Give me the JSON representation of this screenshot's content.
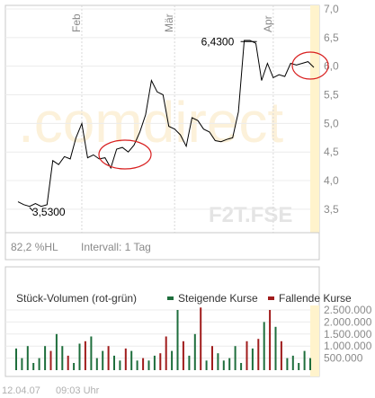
{
  "brand": {
    "watermark": ".comdirect",
    "ticker": "F2T.FSE"
  },
  "info": {
    "change": "82,2 %HL",
    "interval": "Intervall: 1 Tag"
  },
  "footer": {
    "date": "12.04.07",
    "time": "09:03 Uhr"
  },
  "colors": {
    "price": "#000000",
    "up": "#1e6e3c",
    "down": "#a01c1c",
    "highlight": "#d81e1e",
    "grid": "#dcdcdc"
  },
  "chart_data": [
    {
      "type": "line",
      "x_labels": [
        "Feb",
        "Mär",
        "Apr"
      ],
      "ylim": [
        3.2,
        7.0
      ],
      "yticks": [
        "3,5",
        "4,0",
        "4,5",
        "5,0",
        "5,5",
        "6,0",
        "6,5",
        "7,0"
      ],
      "annotations": [
        {
          "label": "3,5300",
          "value": 3.53
        },
        {
          "label": "6,4300",
          "value": 6.43
        }
      ],
      "values": [
        3.63,
        3.58,
        3.55,
        3.6,
        3.55,
        3.58,
        4.35,
        4.28,
        4.42,
        4.38,
        4.75,
        5.0,
        4.4,
        4.45,
        4.38,
        4.4,
        4.22,
        4.55,
        4.58,
        4.5,
        4.62,
        4.85,
        5.15,
        5.75,
        5.55,
        5.5,
        4.95,
        4.9,
        4.8,
        4.6,
        5.1,
        5.05,
        4.9,
        4.85,
        4.7,
        4.68,
        4.72,
        4.75,
        5.2,
        6.45,
        6.45,
        6.4,
        5.75,
        6.05,
        5.8,
        5.85,
        5.82,
        6.05,
        6.02,
        6.05,
        6.08,
        5.98
      ]
    },
    {
      "type": "bar",
      "title": "Stück-Volumen (rot-grün)",
      "legend": [
        {
          "name": "Steigende Kurse",
          "color": "#1e6e3c"
        },
        {
          "name": "Fallende Kurse",
          "color": "#a01c1c"
        }
      ],
      "ylim": [
        0,
        2500000
      ],
      "yticks": [
        "500.000",
        "1.000.000",
        "1.500.000",
        "2.000.000",
        "2.500.000"
      ],
      "values": [
        900000,
        500000,
        1000000,
        300000,
        500000,
        1000000,
        800000,
        1500000,
        1000000,
        600000,
        300000,
        1100000,
        1200000,
        1400000,
        500000,
        800000,
        1000000,
        600000,
        400000,
        900000,
        800000,
        400000,
        500000,
        400000,
        600000,
        700000,
        1400000,
        800000,
        2500000,
        1200000,
        600000,
        1500000,
        2600000,
        400000,
        1000000,
        700000,
        400000,
        500000,
        1000000,
        300000,
        1200000,
        900000,
        1300000,
        2000000,
        2500000,
        1800000,
        1200000,
        500000,
        600000,
        300000,
        800000,
        500000
      ],
      "direction": [
        "g",
        "g",
        "g",
        "g",
        "g",
        "g",
        "r",
        "g",
        "g",
        "r",
        "g",
        "g",
        "r",
        "g",
        "g",
        "g",
        "r",
        "g",
        "g",
        "r",
        "g",
        "g",
        "r",
        "g",
        "g",
        "r",
        "r",
        "g",
        "g",
        "r",
        "g",
        "g",
        "r",
        "g",
        "r",
        "g",
        "g",
        "g",
        "g",
        "g",
        "r",
        "g",
        "r",
        "g",
        "r",
        "g",
        "r",
        "g",
        "g",
        "g",
        "g",
        "g"
      ]
    }
  ]
}
